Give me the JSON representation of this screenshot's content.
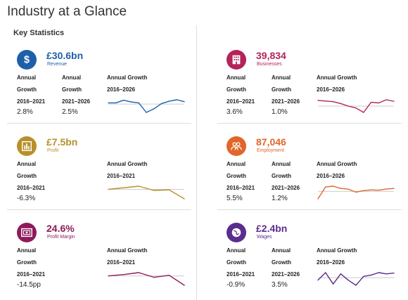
{
  "page": {
    "title": "Industry at a Glance",
    "section_title": "Key Statistics"
  },
  "cards": [
    {
      "id": "revenue",
      "value": "£30.6bn",
      "label": "Revenue",
      "color": "#1f5fa9",
      "icon": "dollar-icon",
      "stats": [
        {
          "l1": "Annual",
          "l2": "Growth",
          "l3": "2016–2021",
          "v": "2.8%"
        },
        {
          "l1": "Annual",
          "l2": "Growth",
          "l3": "2021–2026",
          "v": "2.5%"
        }
      ],
      "chart_title": "Annual Growth",
      "chart_range": "2016–2026",
      "chart_data": {
        "type": "line",
        "x": [
          2016,
          2017,
          2018,
          2019,
          2020,
          2021,
          2022,
          2023,
          2024,
          2025,
          2026
        ],
        "values": [
          0.5,
          0.5,
          1.6,
          0.9,
          0.5,
          -3.5,
          -2.0,
          0.2,
          1.2,
          1.8,
          1.0
        ]
      }
    },
    {
      "id": "profit",
      "value": "£7.5bn",
      "label": "Profit",
      "color": "#b8902b",
      "icon": "bar-chart-icon",
      "stats": [
        {
          "l1": "Annual",
          "l2": "Growth",
          "l3": "2016–2021",
          "v": "-6.3%"
        }
      ],
      "chart_title": "Annual Growth",
      "chart_range": "2016–2021",
      "chart_data": {
        "type": "line",
        "x": [
          2016,
          2017,
          2018,
          2019,
          2020,
          2021
        ],
        "values": [
          0,
          1.5,
          3.0,
          -1.0,
          -0.5,
          -9.0
        ]
      }
    },
    {
      "id": "margin",
      "value": "24.6%",
      "label": "Profit Margin",
      "color": "#8e1a5b",
      "icon": "money-icon",
      "stats": [
        {
          "l1": "Annual",
          "l2": "Growth",
          "l3": "2016–2021",
          "v": "-14.5pp"
        }
      ],
      "chart_title": "Annual Growth",
      "chart_range": "2016–2021",
      "chart_data": {
        "type": "line",
        "x": [
          2016,
          2017,
          2018,
          2019,
          2020,
          2021
        ],
        "values": [
          0,
          1.0,
          2.5,
          -1.0,
          0.5,
          -7.0
        ]
      }
    },
    {
      "id": "businesses",
      "value": "39,834",
      "label": "Businesses",
      "color": "#b4235a",
      "icon": "building-icon",
      "stats": [
        {
          "l1": "Annual",
          "l2": "Growth",
          "l3": "2016–2021",
          "v": "3.6%"
        },
        {
          "l1": "Annual",
          "l2": "Growth",
          "l3": "2021–2026",
          "v": "1.0%"
        }
      ],
      "chart_title": "Annual Growth",
      "chart_range": "2016–2026",
      "chart_data": {
        "type": "line",
        "x": [
          2016,
          2017,
          2018,
          2019,
          2020,
          2021,
          2022,
          2023,
          2024,
          2025,
          2026
        ],
        "values": [
          1.8,
          1.6,
          1.4,
          0.8,
          0,
          -0.6,
          -2.0,
          1.2,
          1.0,
          2.0,
          1.5
        ]
      }
    },
    {
      "id": "employment",
      "value": "87,046",
      "label": "Employment",
      "color": "#e0662a",
      "icon": "people-icon",
      "stats": [
        {
          "l1": "Annual",
          "l2": "Growth",
          "l3": "2016–2021",
          "v": "5.5%"
        },
        {
          "l1": "Annual",
          "l2": "Growth",
          "l3": "2021–2026",
          "v": "1.2%"
        }
      ],
      "chart_title": "Annual Growth",
      "chart_range": "2016–2026",
      "chart_data": {
        "type": "line",
        "x": [
          2016,
          2017,
          2018,
          2019,
          2020,
          2021,
          2022,
          2023,
          2024,
          2025,
          2026
        ],
        "values": [
          -5.0,
          3.0,
          3.5,
          2.0,
          1.5,
          -0.5,
          0.5,
          1.0,
          0.8,
          1.6,
          2.0
        ]
      }
    },
    {
      "id": "wages",
      "value": "£2.4bn",
      "label": "Wages",
      "color": "#5b2d8e",
      "icon": "globe-icon",
      "stats": [
        {
          "l1": "Annual",
          "l2": "Growth",
          "l3": "2016–2021",
          "v": "-0.9%"
        },
        {
          "l1": "Annual",
          "l2": "Growth",
          "l3": "2021–2026",
          "v": "3.5%"
        }
      ],
      "chart_title": "Annual Growth",
      "chart_range": "2016–2026",
      "chart_data": {
        "type": "line",
        "x": [
          2016,
          2017,
          2018,
          2019,
          2020,
          2021,
          2022,
          2023,
          2024,
          2025,
          2026
        ],
        "values": [
          -1.0,
          2.0,
          -2.5,
          1.5,
          -1.0,
          -3.0,
          0.5,
          1.0,
          2.0,
          1.5,
          1.8
        ]
      }
    }
  ]
}
